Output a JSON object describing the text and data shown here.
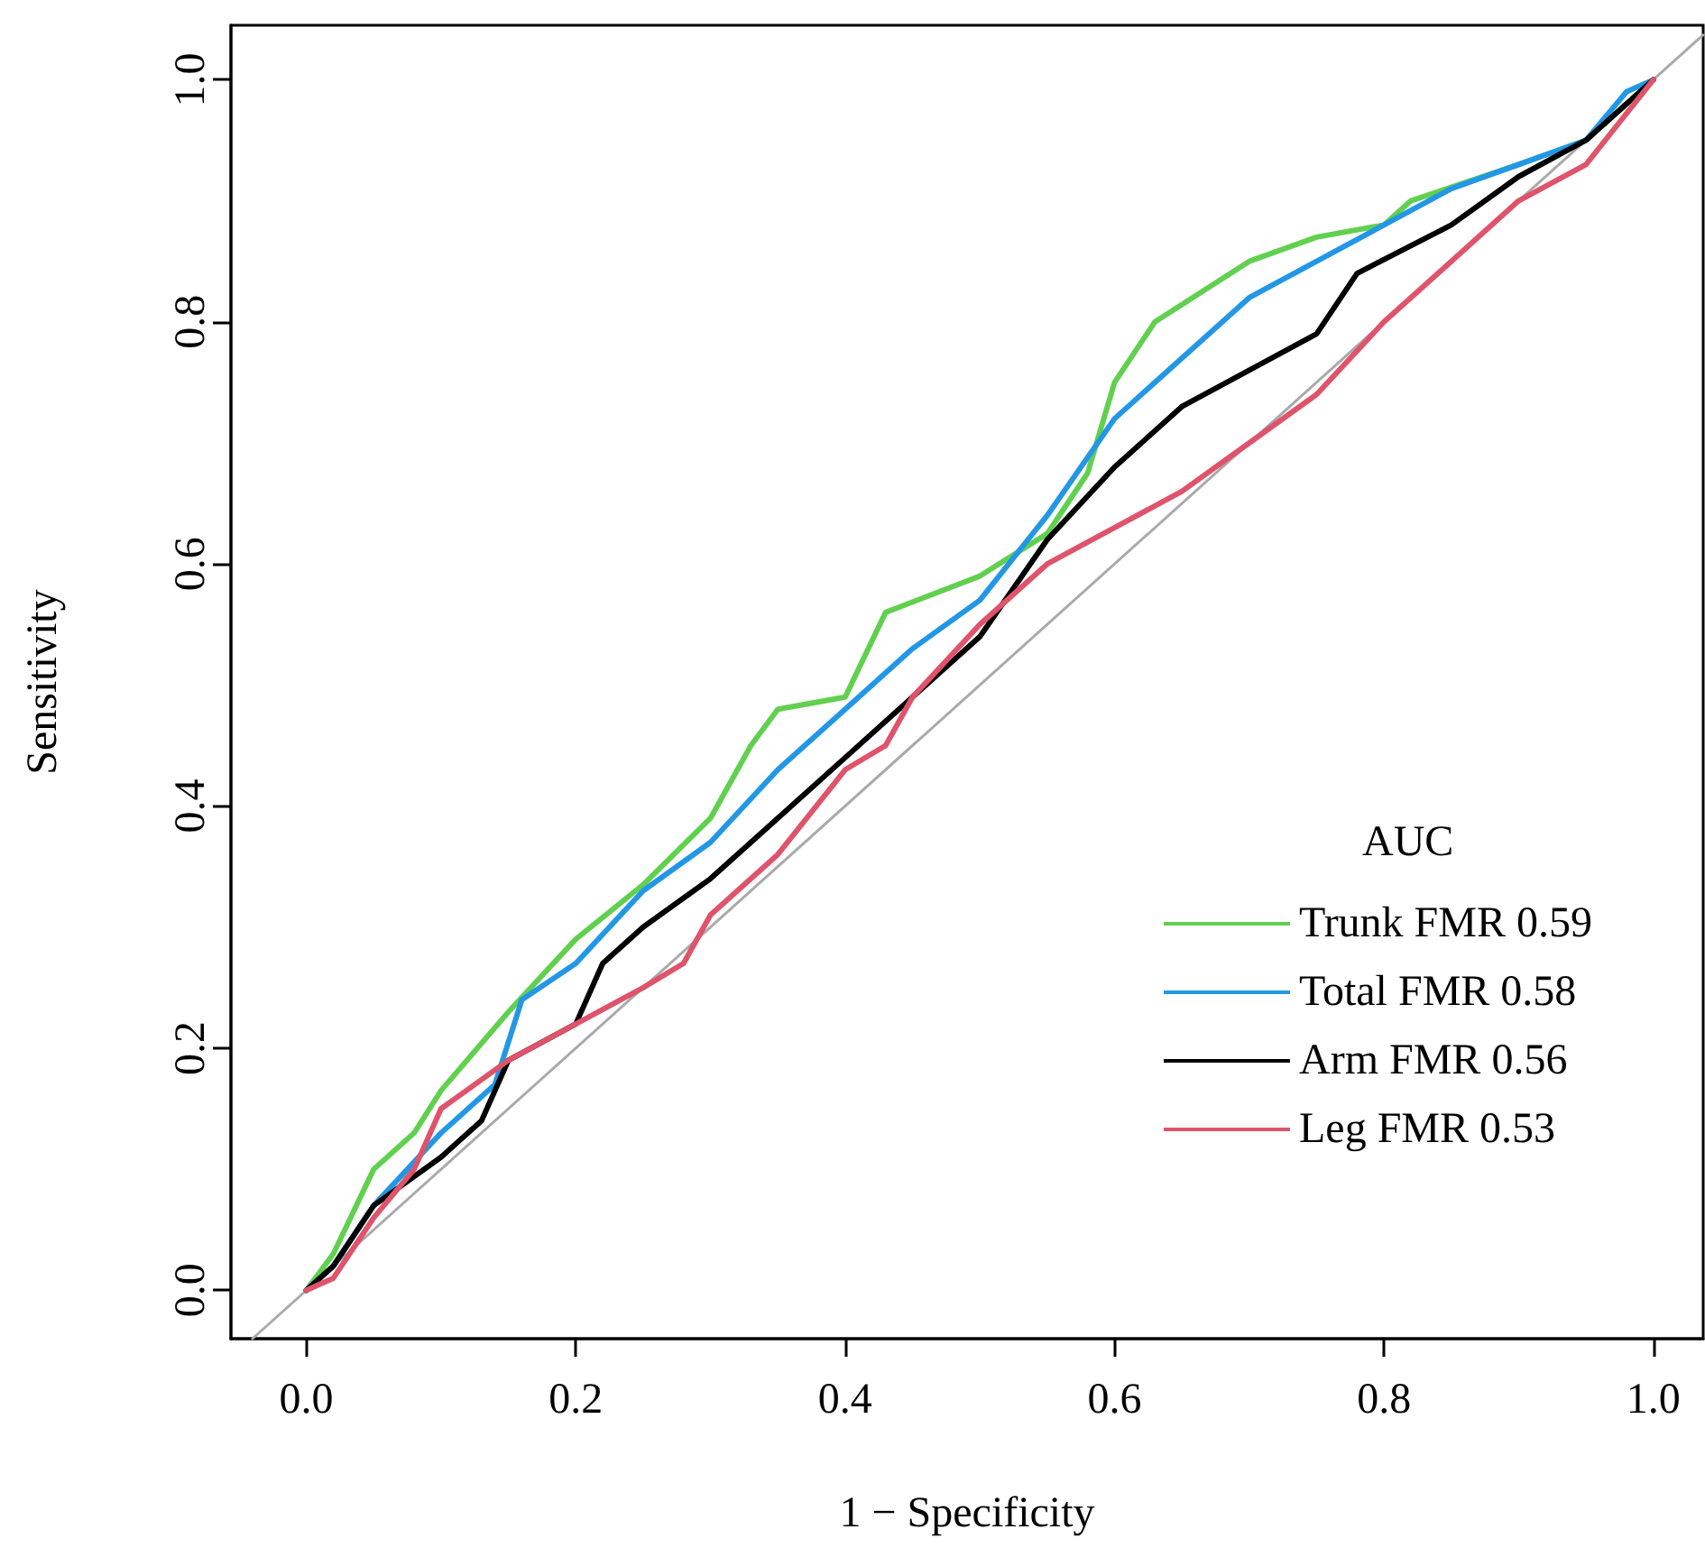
{
  "chart_data": {
    "type": "line",
    "xlabel": "1 − Specificity",
    "ylabel": "Sensitivity",
    "legend_title": "AUC",
    "legend": "right",
    "grid": false,
    "xlim": [
      -0.056,
      1.037
    ],
    "ylim": [
      -0.04,
      1.045
    ],
    "xticks": [
      {
        "value": 0,
        "label": "0.0"
      },
      {
        "value": 0.2,
        "label": "0.2"
      },
      {
        "value": 0.4,
        "label": "0.4"
      },
      {
        "value": 0.6,
        "label": "0.6"
      },
      {
        "value": 0.8,
        "label": "0.8"
      },
      {
        "value": 1,
        "label": "1.0"
      }
    ],
    "yticks": [
      {
        "value": 0,
        "label": "0.0"
      },
      {
        "value": 0.2,
        "label": "0.2"
      },
      {
        "value": 0.4,
        "label": "0.4"
      },
      {
        "value": 0.6,
        "label": "0.6"
      },
      {
        "value": 0.8,
        "label": "0.8"
      },
      {
        "value": 1,
        "label": "1.0"
      }
    ],
    "series": [
      {
        "color": "#aaaaaa",
        "x": [
          -0.04,
          1.037
        ],
        "values": [
          -0.04,
          1.037
        ]
      },
      {
        "name": "Trunk FMR 0.59",
        "color": "#61d04f",
        "x": [
          0,
          0.02,
          0.05,
          0.08,
          0.1,
          0.15,
          0.2,
          0.25,
          0.3,
          0.33,
          0.35,
          0.4,
          0.43,
          0.5,
          0.55,
          0.58,
          0.6,
          0.63,
          0.7,
          0.75,
          0.8,
          0.82,
          0.9,
          0.95,
          1.0
        ],
        "values": [
          0,
          0.03,
          0.1,
          0.13,
          0.165,
          0.23,
          0.29,
          0.335,
          0.39,
          0.45,
          0.48,
          0.49,
          0.56,
          0.59,
          0.625,
          0.675,
          0.75,
          0.8,
          0.85,
          0.87,
          0.88,
          0.9,
          0.93,
          0.95,
          1.0
        ]
      },
      {
        "name": "Total FMR 0.58",
        "color": "#2297e6",
        "x": [
          0,
          0.02,
          0.05,
          0.1,
          0.14,
          0.16,
          0.2,
          0.25,
          0.3,
          0.35,
          0.4,
          0.45,
          0.5,
          0.55,
          0.6,
          0.65,
          0.7,
          0.75,
          0.8,
          0.85,
          0.9,
          0.95,
          0.98,
          1.0
        ],
        "values": [
          0,
          0.02,
          0.07,
          0.13,
          0.17,
          0.24,
          0.27,
          0.33,
          0.37,
          0.43,
          0.48,
          0.53,
          0.57,
          0.64,
          0.72,
          0.77,
          0.82,
          0.85,
          0.88,
          0.91,
          0.93,
          0.95,
          0.99,
          1.0
        ]
      },
      {
        "name": "Arm FMR 0.56",
        "color": "#000000",
        "x": [
          0,
          0.02,
          0.05,
          0.1,
          0.13,
          0.15,
          0.2,
          0.22,
          0.25,
          0.3,
          0.35,
          0.4,
          0.45,
          0.5,
          0.55,
          0.6,
          0.65,
          0.7,
          0.75,
          0.78,
          0.85,
          0.9,
          0.95,
          1.0
        ],
        "values": [
          0,
          0.02,
          0.07,
          0.11,
          0.14,
          0.19,
          0.22,
          0.27,
          0.3,
          0.34,
          0.39,
          0.44,
          0.49,
          0.54,
          0.62,
          0.68,
          0.73,
          0.76,
          0.79,
          0.84,
          0.88,
          0.92,
          0.95,
          1.0
        ]
      },
      {
        "name": "Leg FMR 0.53",
        "color": "#df536b",
        "x": [
          0,
          0.02,
          0.05,
          0.08,
          0.1,
          0.15,
          0.2,
          0.25,
          0.28,
          0.3,
          0.35,
          0.4,
          0.43,
          0.45,
          0.5,
          0.55,
          0.6,
          0.65,
          0.7,
          0.75,
          0.8,
          0.85,
          0.9,
          0.95,
          1.0
        ],
        "values": [
          0,
          0.01,
          0.06,
          0.1,
          0.15,
          0.19,
          0.22,
          0.25,
          0.27,
          0.31,
          0.36,
          0.43,
          0.45,
          0.49,
          0.55,
          0.6,
          0.63,
          0.66,
          0.7,
          0.74,
          0.8,
          0.85,
          0.9,
          0.93,
          1.0
        ]
      }
    ]
  }
}
